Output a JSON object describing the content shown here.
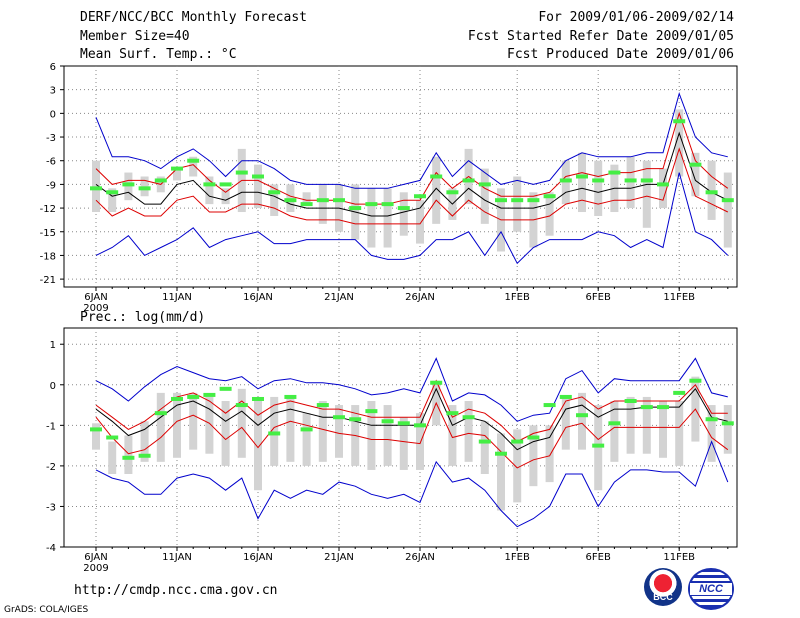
{
  "header": {
    "title": "DERF/NCC/BCC Monthly Forecast",
    "member_size": "Member Size=40",
    "variable": "Mean Surf. Temp.: °C",
    "period": "For 2009/01/06-2009/02/14",
    "start_date": "Fcst Started Refer Date 2009/01/05",
    "produced_date": "Fcst Produced Date 2009/01/06"
  },
  "footer": {
    "url": "http://cmdp.ncc.cma.gov.cn",
    "credit": "GrADS: COLA/IGES",
    "logo_bcc": "BCC",
    "logo_ncc": "NCC"
  },
  "colors": {
    "max_min": "#0000cc",
    "spread": "#dd0000",
    "mean": "#000000",
    "box": "#d3d3d3",
    "obs": "#44ee44",
    "grid": "#888888"
  },
  "chart_data": [
    {
      "type": "line",
      "title": "Mean Surf. Temp.: °C",
      "ylabel": "°C",
      "ylim": [
        -22,
        6
      ],
      "yticks": [
        6,
        3,
        0,
        -3,
        -6,
        -9,
        -12,
        -15,
        -18,
        -21
      ],
      "xticks": [
        {
          "day": 0,
          "label": "6JAN",
          "sub": "2009"
        },
        {
          "day": 5,
          "label": "11JAN"
        },
        {
          "day": 10,
          "label": "16JAN"
        },
        {
          "day": 15,
          "label": "21JAN"
        },
        {
          "day": 20,
          "label": "26JAN"
        },
        {
          "day": 26,
          "label": "1FEB"
        },
        {
          "day": 31,
          "label": "6FEB"
        },
        {
          "day": 36,
          "label": "11FEB"
        }
      ],
      "x": [
        0,
        1,
        2,
        3,
        4,
        5,
        6,
        7,
        8,
        9,
        10,
        11,
        12,
        13,
        14,
        15,
        16,
        17,
        18,
        19,
        20,
        21,
        22,
        23,
        24,
        25,
        26,
        27,
        28,
        29,
        30,
        31,
        32,
        33,
        34,
        35,
        36,
        37,
        38,
        39
      ],
      "series": [
        {
          "name": "max",
          "values": [
            -0.5,
            -5.5,
            -5.5,
            -6,
            -7,
            -5.5,
            -4.5,
            -6,
            -8,
            -6,
            -6,
            -7,
            -8.5,
            -9,
            -9,
            -9,
            -9.5,
            -9.5,
            -9.5,
            -9,
            -8.5,
            -5,
            -8,
            -6,
            -7.5,
            -9,
            -8.5,
            -9,
            -8.5,
            -6,
            -5,
            -5.5,
            -5.5,
            -5.5,
            -5,
            -5,
            2.5,
            -3,
            -5,
            -5.5
          ]
        },
        {
          "name": "upper",
          "values": [
            -7,
            -9,
            -8.5,
            -8.5,
            -9,
            -7,
            -6.5,
            -8.5,
            -10,
            -8.5,
            -8.5,
            -9.5,
            -10.5,
            -11,
            -11,
            -11,
            -11.5,
            -11.5,
            -11.5,
            -11,
            -11,
            -7.5,
            -9.5,
            -8,
            -9.5,
            -10.5,
            -10.5,
            -10.5,
            -10,
            -8,
            -7.5,
            -8,
            -7.5,
            -7.5,
            -7,
            -7,
            0,
            -6,
            -8,
            -9.5
          ]
        },
        {
          "name": "mean",
          "values": [
            -9,
            -10.5,
            -10,
            -11.5,
            -11.5,
            -9,
            -8.5,
            -10.5,
            -11,
            -10,
            -10,
            -10.5,
            -11.5,
            -12,
            -12,
            -12,
            -12.5,
            -13,
            -13,
            -12.5,
            -12,
            -9.5,
            -11.5,
            -9.5,
            -11,
            -12,
            -12,
            -12,
            -11.5,
            -10,
            -9.5,
            -10,
            -9.5,
            -9.5,
            -9,
            -9,
            -2.5,
            -8.5,
            -10,
            -11
          ]
        },
        {
          "name": "lower",
          "values": [
            -11,
            -13,
            -12,
            -13,
            -13,
            -11,
            -10.5,
            -12.5,
            -12.5,
            -11.5,
            -11.5,
            -12,
            -13,
            -13.5,
            -13.5,
            -13.5,
            -14,
            -14,
            -14,
            -14,
            -14,
            -11,
            -13,
            -11,
            -12.5,
            -13.5,
            -13.5,
            -13.5,
            -13,
            -11.5,
            -11,
            -11.5,
            -11,
            -11,
            -10.5,
            -11,
            -4.5,
            -10.5,
            -11.5,
            -12.5
          ]
        },
        {
          "name": "min",
          "values": [
            -18,
            -17,
            -15.5,
            -18,
            -17,
            -16,
            -14.5,
            -17,
            -16,
            -15.5,
            -15,
            -16.5,
            -16.5,
            -16,
            -16,
            -16,
            -16,
            -18,
            -18.5,
            -18.5,
            -18,
            -16,
            -16,
            -15,
            -18,
            -15,
            -19,
            -17,
            -16,
            -16,
            -16,
            -15,
            -15.5,
            -17,
            -16,
            -17,
            -7.5,
            -15,
            -16,
            -18
          ]
        },
        {
          "name": "box_top",
          "values": [
            -6,
            -9.5,
            -7.5,
            -8,
            -8,
            -7,
            -5.5,
            -8,
            -9.5,
            -4.5,
            -6.5,
            -9,
            -9,
            -10,
            -9,
            -9,
            -9,
            -9.5,
            -9.5,
            -10,
            -11,
            -5.5,
            -9.5,
            -4.5,
            -7,
            -9.5,
            -8,
            -10,
            -10,
            -6,
            -5,
            -6,
            -6.5,
            -5.5,
            -6,
            -7,
            0.5,
            -5,
            -6,
            -7.5
          ]
        },
        {
          "name": "box_bottom",
          "values": [
            -12.5,
            -12.5,
            -11,
            -10.5,
            -10,
            -8.5,
            -8,
            -11.5,
            -11.5,
            -12.5,
            -12,
            -13,
            -12.5,
            -11.5,
            -14,
            -15,
            -16,
            -17,
            -17,
            -15.5,
            -16.5,
            -14,
            -13.5,
            -11.5,
            -14,
            -17.5,
            -15,
            -17,
            -15.5,
            -11.5,
            -12.5,
            -13,
            -12.5,
            -12,
            -14.5,
            -12,
            -8,
            -10.5,
            -13.5,
            -17
          ]
        },
        {
          "name": "observed",
          "values": [
            -9.5,
            -10,
            -9,
            -9.5,
            -8.5,
            -7,
            -6,
            -9,
            -9,
            -7.5,
            -8,
            -10,
            -11,
            -11.5,
            -11,
            -11,
            -12,
            -11.5,
            -11.5,
            -12,
            -10.5,
            -8,
            -10,
            -8.5,
            -9,
            -11,
            -11,
            -11,
            -10.5,
            -8.5,
            -8,
            -8.5,
            -7.5,
            -8.5,
            -8.5,
            -9,
            -1,
            -6.5,
            -10,
            -11
          ]
        }
      ]
    },
    {
      "type": "line",
      "title": "Prec.: log(mm/d)",
      "ylabel": "log(mm/d)",
      "ylim": [
        -4,
        1.4
      ],
      "yticks": [
        1,
        0,
        -1,
        -2,
        -3,
        -4
      ],
      "xticks": [
        {
          "day": 0,
          "label": "6JAN",
          "sub": "2009"
        },
        {
          "day": 5,
          "label": "11JAN"
        },
        {
          "day": 10,
          "label": "16JAN"
        },
        {
          "day": 15,
          "label": "21JAN"
        },
        {
          "day": 20,
          "label": "26JAN"
        },
        {
          "day": 26,
          "label": "1FEB"
        },
        {
          "day": 31,
          "label": "6FEB"
        },
        {
          "day": 36,
          "label": "11FEB"
        }
      ],
      "x": [
        0,
        1,
        2,
        3,
        4,
        5,
        6,
        7,
        8,
        9,
        10,
        11,
        12,
        13,
        14,
        15,
        16,
        17,
        18,
        19,
        20,
        21,
        22,
        23,
        24,
        25,
        26,
        27,
        28,
        29,
        30,
        31,
        32,
        33,
        34,
        35,
        36,
        37,
        38,
        39
      ],
      "series": [
        {
          "name": "max",
          "values": [
            0.1,
            -0.1,
            -0.4,
            -0.05,
            0.25,
            0.45,
            0.3,
            0.15,
            0.1,
            0.2,
            -0.1,
            0.1,
            0.15,
            0.05,
            0.05,
            0,
            -0.1,
            -0.25,
            -0.2,
            -0.1,
            -0.2,
            0.65,
            -0.4,
            -0.2,
            -0.25,
            -0.5,
            -0.9,
            -0.75,
            -0.7,
            0.15,
            0.35,
            -0.2,
            0.15,
            0.1,
            0.1,
            0.1,
            0.1,
            0.65,
            -0.2,
            -0.3
          ]
        },
        {
          "name": "upper",
          "values": [
            -0.5,
            -0.8,
            -1.1,
            -0.9,
            -0.6,
            -0.3,
            -0.2,
            -0.4,
            -0.7,
            -0.4,
            -0.75,
            -0.5,
            -0.4,
            -0.5,
            -0.6,
            -0.6,
            -0.7,
            -0.8,
            -0.8,
            -0.8,
            -0.8,
            0.1,
            -0.8,
            -0.6,
            -0.7,
            -1,
            -1.4,
            -1.2,
            -1.1,
            -0.4,
            -0.3,
            -0.6,
            -0.4,
            -0.4,
            -0.4,
            -0.4,
            -0.4,
            0,
            -0.7,
            -0.7
          ]
        },
        {
          "name": "mean",
          "values": [
            -0.6,
            -0.9,
            -1.25,
            -1.1,
            -0.8,
            -0.5,
            -0.4,
            -0.6,
            -0.9,
            -0.65,
            -1,
            -0.7,
            -0.6,
            -0.7,
            -0.8,
            -0.8,
            -0.9,
            -1,
            -1,
            -1,
            -1,
            -0.1,
            -1,
            -0.8,
            -0.9,
            -1.2,
            -1.6,
            -1.4,
            -1.3,
            -0.6,
            -0.5,
            -0.8,
            -0.6,
            -0.6,
            -0.55,
            -0.55,
            -0.55,
            -0.1,
            -0.8,
            -0.9
          ]
        },
        {
          "name": "lower",
          "values": [
            -0.8,
            -1.3,
            -1.7,
            -1.6,
            -1.3,
            -0.9,
            -0.75,
            -0.95,
            -1.35,
            -1.05,
            -1.55,
            -1.05,
            -0.9,
            -1,
            -1.1,
            -1.2,
            -1.25,
            -1.35,
            -1.35,
            -1.4,
            -1.45,
            -0.45,
            -1.3,
            -1.2,
            -1.25,
            -1.65,
            -2.05,
            -1.85,
            -1.75,
            -1.05,
            -0.95,
            -1.35,
            -1.05,
            -1.05,
            -1.05,
            -1.05,
            -1.05,
            -0.6,
            -1.3,
            -1.6
          ]
        },
        {
          "name": "min",
          "values": [
            -2.1,
            -2.3,
            -2.4,
            -2.7,
            -2.7,
            -2.3,
            -2.2,
            -2.3,
            -2.6,
            -2.3,
            -3.3,
            -2.6,
            -2.8,
            -2.6,
            -2.7,
            -2.4,
            -2.5,
            -2.7,
            -2.8,
            -2.7,
            -2.9,
            -1.9,
            -2.4,
            -2.3,
            -2.6,
            -3.1,
            -3.5,
            -3.3,
            -3,
            -2.2,
            -2.2,
            -3,
            -2.4,
            -2.1,
            -2.1,
            -2.15,
            -2.15,
            -2.5,
            -1.4,
            -2.4
          ]
        },
        {
          "name": "box_top",
          "values": [
            -0.95,
            -1.4,
            -1.25,
            -0.9,
            -0.2,
            -0.2,
            -0.2,
            -0.3,
            -0.4,
            -0.1,
            -0.4,
            -0.3,
            -0.3,
            -0.7,
            -0.4,
            -0.5,
            -0.5,
            -0.4,
            -0.5,
            -0.8,
            -0.7,
            0.1,
            -0.5,
            -0.4,
            -0.9,
            -1.2,
            -1.1,
            -1.0,
            -1.0,
            -0.3,
            -0.2,
            -0.5,
            -0.4,
            -0.3,
            -0.3,
            -0.4,
            -0.4,
            0.2,
            -0.5,
            -0.5
          ]
        },
        {
          "name": "box_bottom",
          "values": [
            -1.6,
            -2.2,
            -2.2,
            -1.9,
            -1.9,
            -1.8,
            -1.6,
            -1.7,
            -2.0,
            -1.8,
            -2.6,
            -2.0,
            -1.9,
            -2.0,
            -1.9,
            -1.8,
            -2.0,
            -2.1,
            -2.0,
            -2.1,
            -2.1,
            -1.0,
            -2.0,
            -1.9,
            -2.2,
            -3.1,
            -2.9,
            -2.5,
            -2.4,
            -1.6,
            -1.6,
            -2.6,
            -1.9,
            -1.7,
            -1.7,
            -1.8,
            -2.0,
            -1.4,
            -1.9,
            -1.7
          ]
        },
        {
          "name": "observed",
          "values": [
            -1.1,
            -1.3,
            -1.8,
            -1.75,
            -0.7,
            -0.35,
            -0.3,
            -0.25,
            -0.1,
            -0.5,
            -0.35,
            -1.2,
            -0.3,
            -1.1,
            -0.5,
            -0.8,
            -0.85,
            -0.65,
            -0.9,
            -0.95,
            -1,
            0.05,
            -0.7,
            -0.8,
            -1.4,
            -1.7,
            -1.4,
            -1.3,
            -0.5,
            -0.3,
            -0.75,
            -1.5,
            -0.95,
            -0.4,
            -0.55,
            -0.55,
            -0.2,
            0.1,
            -0.85,
            -0.95
          ]
        }
      ]
    }
  ]
}
